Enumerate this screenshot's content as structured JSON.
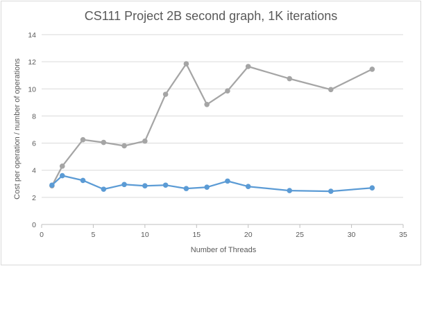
{
  "chart_data": {
    "type": "line",
    "title": "CS111 Project 2B second graph, 1K iterations",
    "xlabel": "Number of Threads",
    "ylabel": "Cost per operation / number of operations",
    "xlim": [
      0,
      35
    ],
    "ylim": [
      0,
      14
    ],
    "x_ticks": [
      "0",
      "5",
      "10",
      "15",
      "20",
      "25",
      "30",
      "35"
    ],
    "y_ticks": [
      "0",
      "2",
      "4",
      "6",
      "8",
      "10",
      "12",
      "14"
    ],
    "grid": "horizontal",
    "legend": "none",
    "series": [
      {
        "color": "#a5a5a5",
        "x": [
          1,
          2,
          4,
          6,
          8,
          10,
          12,
          14,
          16,
          18,
          20,
          24,
          28,
          32
        ],
        "values": [
          2.85,
          4.3,
          6.25,
          6.05,
          5.8,
          6.15,
          9.6,
          11.85,
          8.85,
          9.85,
          11.65,
          10.75,
          9.95,
          11.45
        ]
      },
      {
        "color": "#5b9bd5",
        "x": [
          1,
          2,
          4,
          6,
          8,
          10,
          12,
          14,
          16,
          18,
          20,
          24,
          28,
          32
        ],
        "values": [
          2.9,
          3.6,
          3.25,
          2.6,
          2.95,
          2.85,
          2.9,
          2.65,
          2.75,
          3.2,
          2.8,
          2.5,
          2.45,
          2.7
        ]
      }
    ]
  }
}
